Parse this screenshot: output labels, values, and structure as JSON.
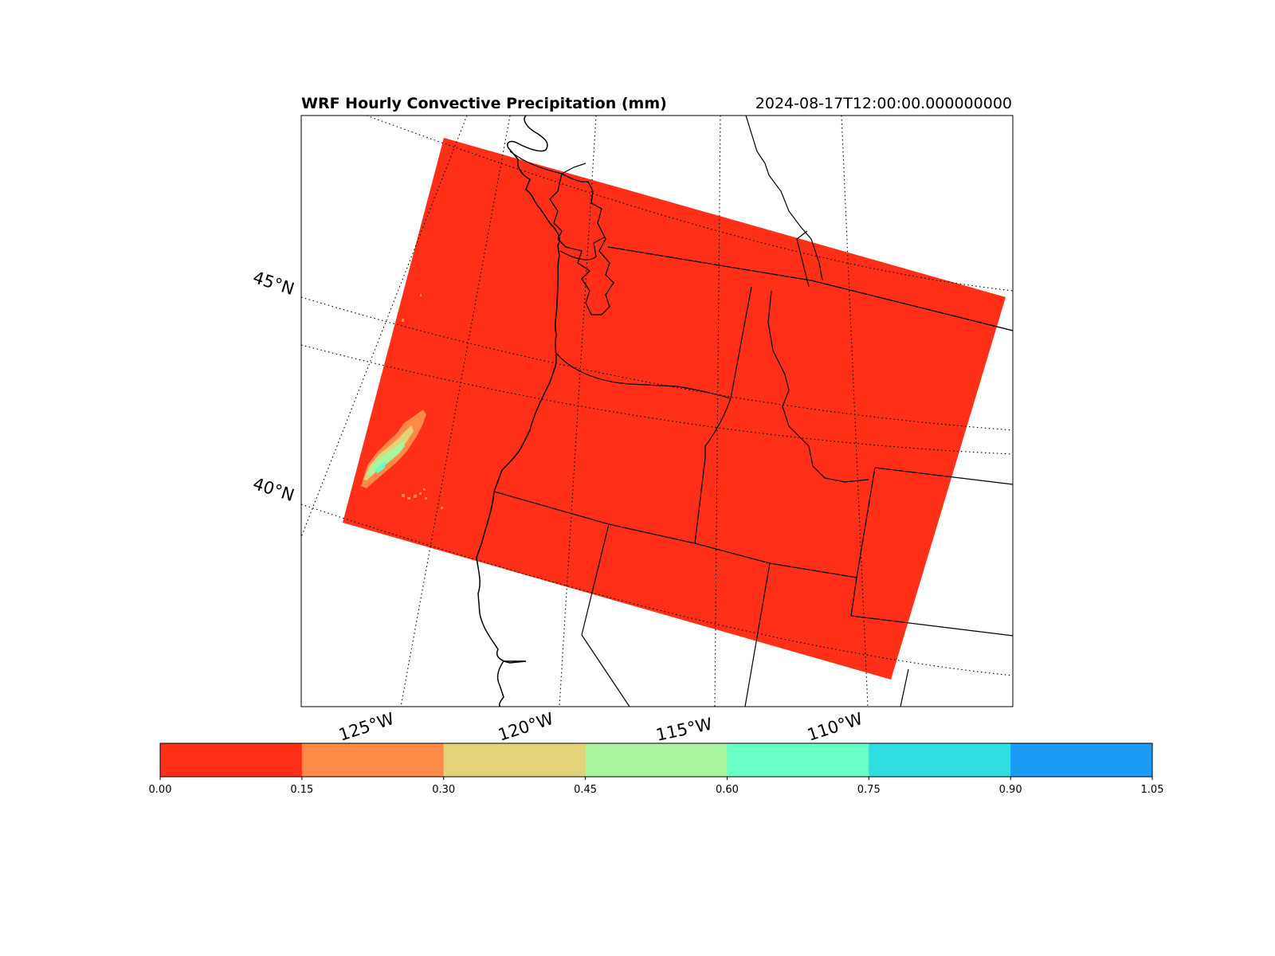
{
  "figure": {
    "title_left": "WRF Hourly Convective Precipitation (mm)",
    "title_right": "2024-08-17T12:00:00.000000000"
  },
  "map": {
    "latitude_labels": [
      "45°N",
      "40°N"
    ],
    "longitude_labels": [
      "125°W",
      "120°W",
      "115°W",
      "110°W"
    ],
    "domain_fill_color": "#ff2f18",
    "precip_colors": [
      "#ff8a48",
      "#e2d37a",
      "#a8f59e",
      "#6bffc8"
    ]
  },
  "colorbar": {
    "bins": [
      {
        "color": "#ff2f18"
      },
      {
        "color": "#ff8a48"
      },
      {
        "color": "#e2d37a"
      },
      {
        "color": "#a8f59e"
      },
      {
        "color": "#6bffc8"
      },
      {
        "color": "#2ddde0"
      },
      {
        "color": "#1a9bf5"
      }
    ],
    "tick_labels": [
      "0.00",
      "0.15",
      "0.30",
      "0.45",
      "0.60",
      "0.75",
      "0.90",
      "1.05"
    ]
  }
}
